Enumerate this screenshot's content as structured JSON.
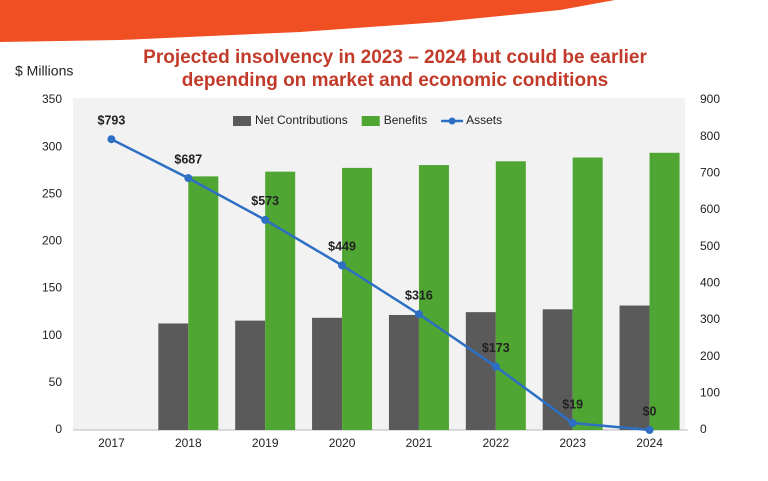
{
  "chart_data": {
    "type": "bar",
    "title": [
      "Projected insolvency in 2023 – 2024 but could be earlier",
      "depending on market and economic conditions"
    ],
    "y_label": "$ Millions",
    "categories": [
      "2017",
      "2018",
      "2019",
      "2020",
      "2021",
      "2022",
      "2023",
      "2024"
    ],
    "series": [
      {
        "name": "Net Contributions",
        "type": "bar",
        "color": "#5a5a5a",
        "values": [
          null,
          113,
          116,
          119,
          122,
          125,
          128,
          132
        ]
      },
      {
        "name": "Benefits",
        "type": "bar",
        "color": "#4fa632",
        "values": [
          null,
          269,
          274,
          278,
          281,
          285,
          289,
          294
        ]
      },
      {
        "name": "Assets",
        "type": "line",
        "axis": "y2",
        "color": "#2d6fc4",
        "values": [
          793,
          687,
          573,
          449,
          316,
          173,
          19,
          0
        ],
        "value_labels": [
          "$793",
          "$687",
          "$573",
          "$449",
          "$316",
          "$173",
          "$19",
          "$0"
        ]
      }
    ],
    "ylim": [
      0,
      350
    ],
    "yticks": [
      0,
      50,
      100,
      150,
      200,
      250,
      300,
      350
    ],
    "y2lim": [
      0,
      900
    ],
    "y2ticks": [
      0,
      100,
      200,
      300,
      400,
      500,
      600,
      700,
      800,
      900
    ],
    "legend": "top",
    "grid": false
  }
}
